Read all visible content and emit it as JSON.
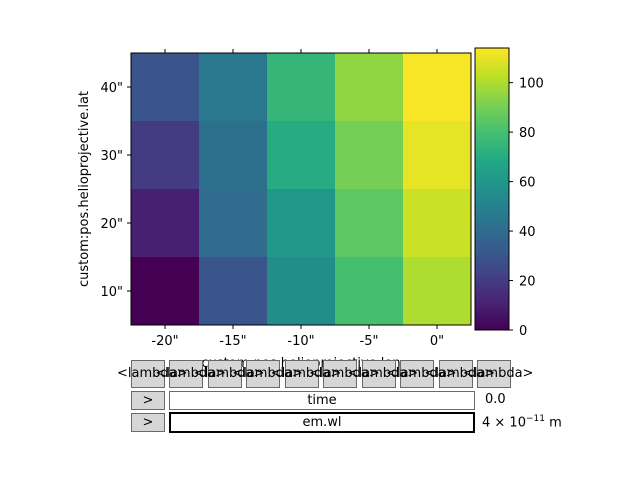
{
  "chart_data": {
    "type": "heatmap",
    "x_ticks": [
      "-20\"",
      "-15\"",
      "-10\"",
      "-5\"",
      "0\""
    ],
    "y_ticks": [
      "10\"",
      "20\"",
      "30\"",
      "40\""
    ],
    "xlabel": "custom:pos.helioprojective.lon",
    "ylabel": "custom:pos.helioprojective.lat",
    "rows_top_to_bottom": [
      [
        30,
        45,
        75,
        95,
        113
      ],
      [
        20,
        42,
        70,
        90,
        110
      ],
      [
        10,
        40,
        60,
        85,
        105
      ],
      [
        0,
        30,
        55,
        80,
        100
      ]
    ],
    "colorbar": {
      "ticks": [
        0,
        20,
        40,
        60,
        80,
        100
      ],
      "vmin": 0,
      "vmax": 114,
      "colormap": "viridis"
    }
  },
  "controls": {
    "lambda_buttons": [
      "<lambda>",
      "<lambda>",
      "<lambda>",
      "<lambda>",
      "<lambda>",
      "<lambda>",
      "<lambda>",
      "<lambda>",
      "<lambda>",
      "<lambda>"
    ],
    "sliders": [
      {
        "play_label": ">",
        "name": "time",
        "value_text": "0.0"
      },
      {
        "play_label": ">",
        "name": "em.wl",
        "value_mantissa": "4 × 10",
        "value_exponent": "−11",
        "value_unit": "m"
      }
    ]
  }
}
